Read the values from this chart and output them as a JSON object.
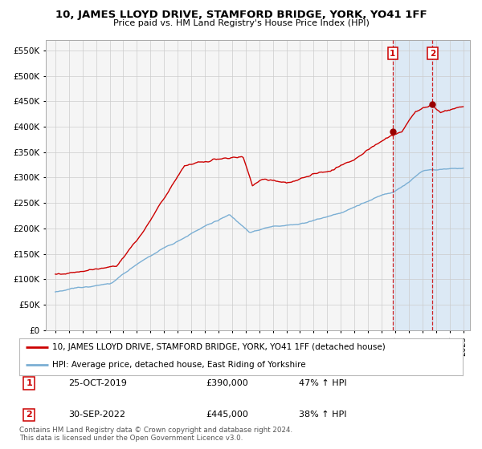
{
  "title": "10, JAMES LLOYD DRIVE, STAMFORD BRIDGE, YORK, YO41 1FF",
  "subtitle": "Price paid vs. HM Land Registry's House Price Index (HPI)",
  "legend_label_red": "10, JAMES LLOYD DRIVE, STAMFORD BRIDGE, YORK, YO41 1FF (detached house)",
  "legend_label_blue": "HPI: Average price, detached house, East Riding of Yorkshire",
  "transaction1_label": "1",
  "transaction2_label": "2",
  "transaction1_date": "25-OCT-2019",
  "transaction1_price": "£390,000",
  "transaction1_hpi": "47% ↑ HPI",
  "transaction2_date": "30-SEP-2022",
  "transaction2_price": "£445,000",
  "transaction2_hpi": "38% ↑ HPI",
  "copyright": "Contains HM Land Registry data © Crown copyright and database right 2024.\nThis data is licensed under the Open Government Licence v3.0.",
  "ylim_min": 0,
  "ylim_max": 570000,
  "yticks": [
    0,
    50000,
    100000,
    150000,
    200000,
    250000,
    300000,
    350000,
    400000,
    450000,
    500000,
    550000
  ],
  "ytick_labels": [
    "£0",
    "£50K",
    "£100K",
    "£150K",
    "£200K",
    "£250K",
    "£300K",
    "£350K",
    "£400K",
    "£450K",
    "£500K",
    "£550K"
  ],
  "red_color": "#cc0000",
  "blue_color": "#7bafd4",
  "shade_color": "#dce9f5",
  "grid_color": "#cccccc",
  "plot_bg_color": "#f5f5f5",
  "fig_bg_color": "#ffffff",
  "transaction1_x": 2019.82,
  "transaction2_x": 2022.75,
  "transaction1_y": 390000,
  "transaction2_y": 445000,
  "xlim_left": 1994.3,
  "xlim_right": 2025.5
}
